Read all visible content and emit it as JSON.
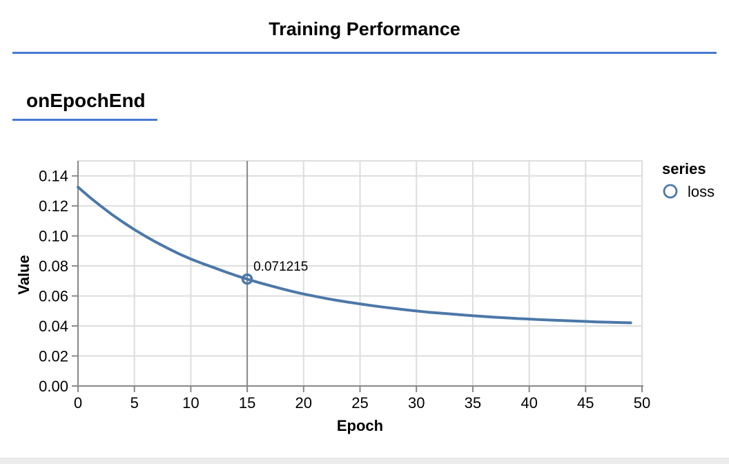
{
  "page": {
    "title": "Training Performance",
    "section": {
      "heading": "onEpochEnd"
    },
    "accent_color": "#4878d0"
  },
  "chart_data": {
    "type": "line",
    "title": "onEpochEnd",
    "xlabel": "Epoch",
    "ylabel": "Value",
    "xlim": [
      0,
      50
    ],
    "ylim": [
      0,
      0.15
    ],
    "x_ticks": [
      0,
      5,
      10,
      15,
      20,
      25,
      30,
      35,
      40,
      45,
      50
    ],
    "y_ticks": [
      0,
      0.02,
      0.04,
      0.06,
      0.08,
      0.1,
      0.12,
      0.14
    ],
    "grid": true,
    "legend": {
      "title": "series",
      "position": "right",
      "items": [
        {
          "label": "loss",
          "color": "#4c78a8",
          "marker": "open-circle"
        }
      ]
    },
    "series": [
      {
        "name": "loss",
        "color": "#4c78a8",
        "x": [
          0,
          1,
          2,
          3,
          4,
          5,
          6,
          7,
          8,
          9,
          10,
          11,
          12,
          13,
          14,
          15,
          16,
          17,
          18,
          19,
          20,
          21,
          22,
          23,
          24,
          25,
          26,
          27,
          28,
          29,
          30,
          31,
          32,
          33,
          34,
          35,
          36,
          37,
          38,
          39,
          40,
          41,
          42,
          43,
          44,
          45,
          46,
          47,
          48,
          49
        ],
        "values": [
          0.1325,
          0.126,
          0.12,
          0.1143,
          0.1091,
          0.1042,
          0.0997,
          0.0955,
          0.0916,
          0.0879,
          0.0846,
          0.0817,
          0.079,
          0.0762,
          0.0736,
          0.071215,
          0.069,
          0.0669,
          0.0649,
          0.063,
          0.0613,
          0.0598,
          0.0583,
          0.057,
          0.0558,
          0.0547,
          0.0536,
          0.0526,
          0.0517,
          0.0508,
          0.05,
          0.0492,
          0.0486,
          0.048,
          0.0474,
          0.0468,
          0.0463,
          0.0458,
          0.0454,
          0.0449,
          0.0446,
          0.0442,
          0.0439,
          0.0436,
          0.0433,
          0.043,
          0.0427,
          0.0425,
          0.0423,
          0.0421
        ]
      }
    ],
    "highlight": {
      "series": "loss",
      "x": 15,
      "value": 0.071215,
      "label": "0.071215"
    },
    "colors": {
      "line": "#4c78a8",
      "grid": "#dddddd",
      "axis": "#888888",
      "crosshair": "#888888",
      "label": "#000000"
    }
  }
}
